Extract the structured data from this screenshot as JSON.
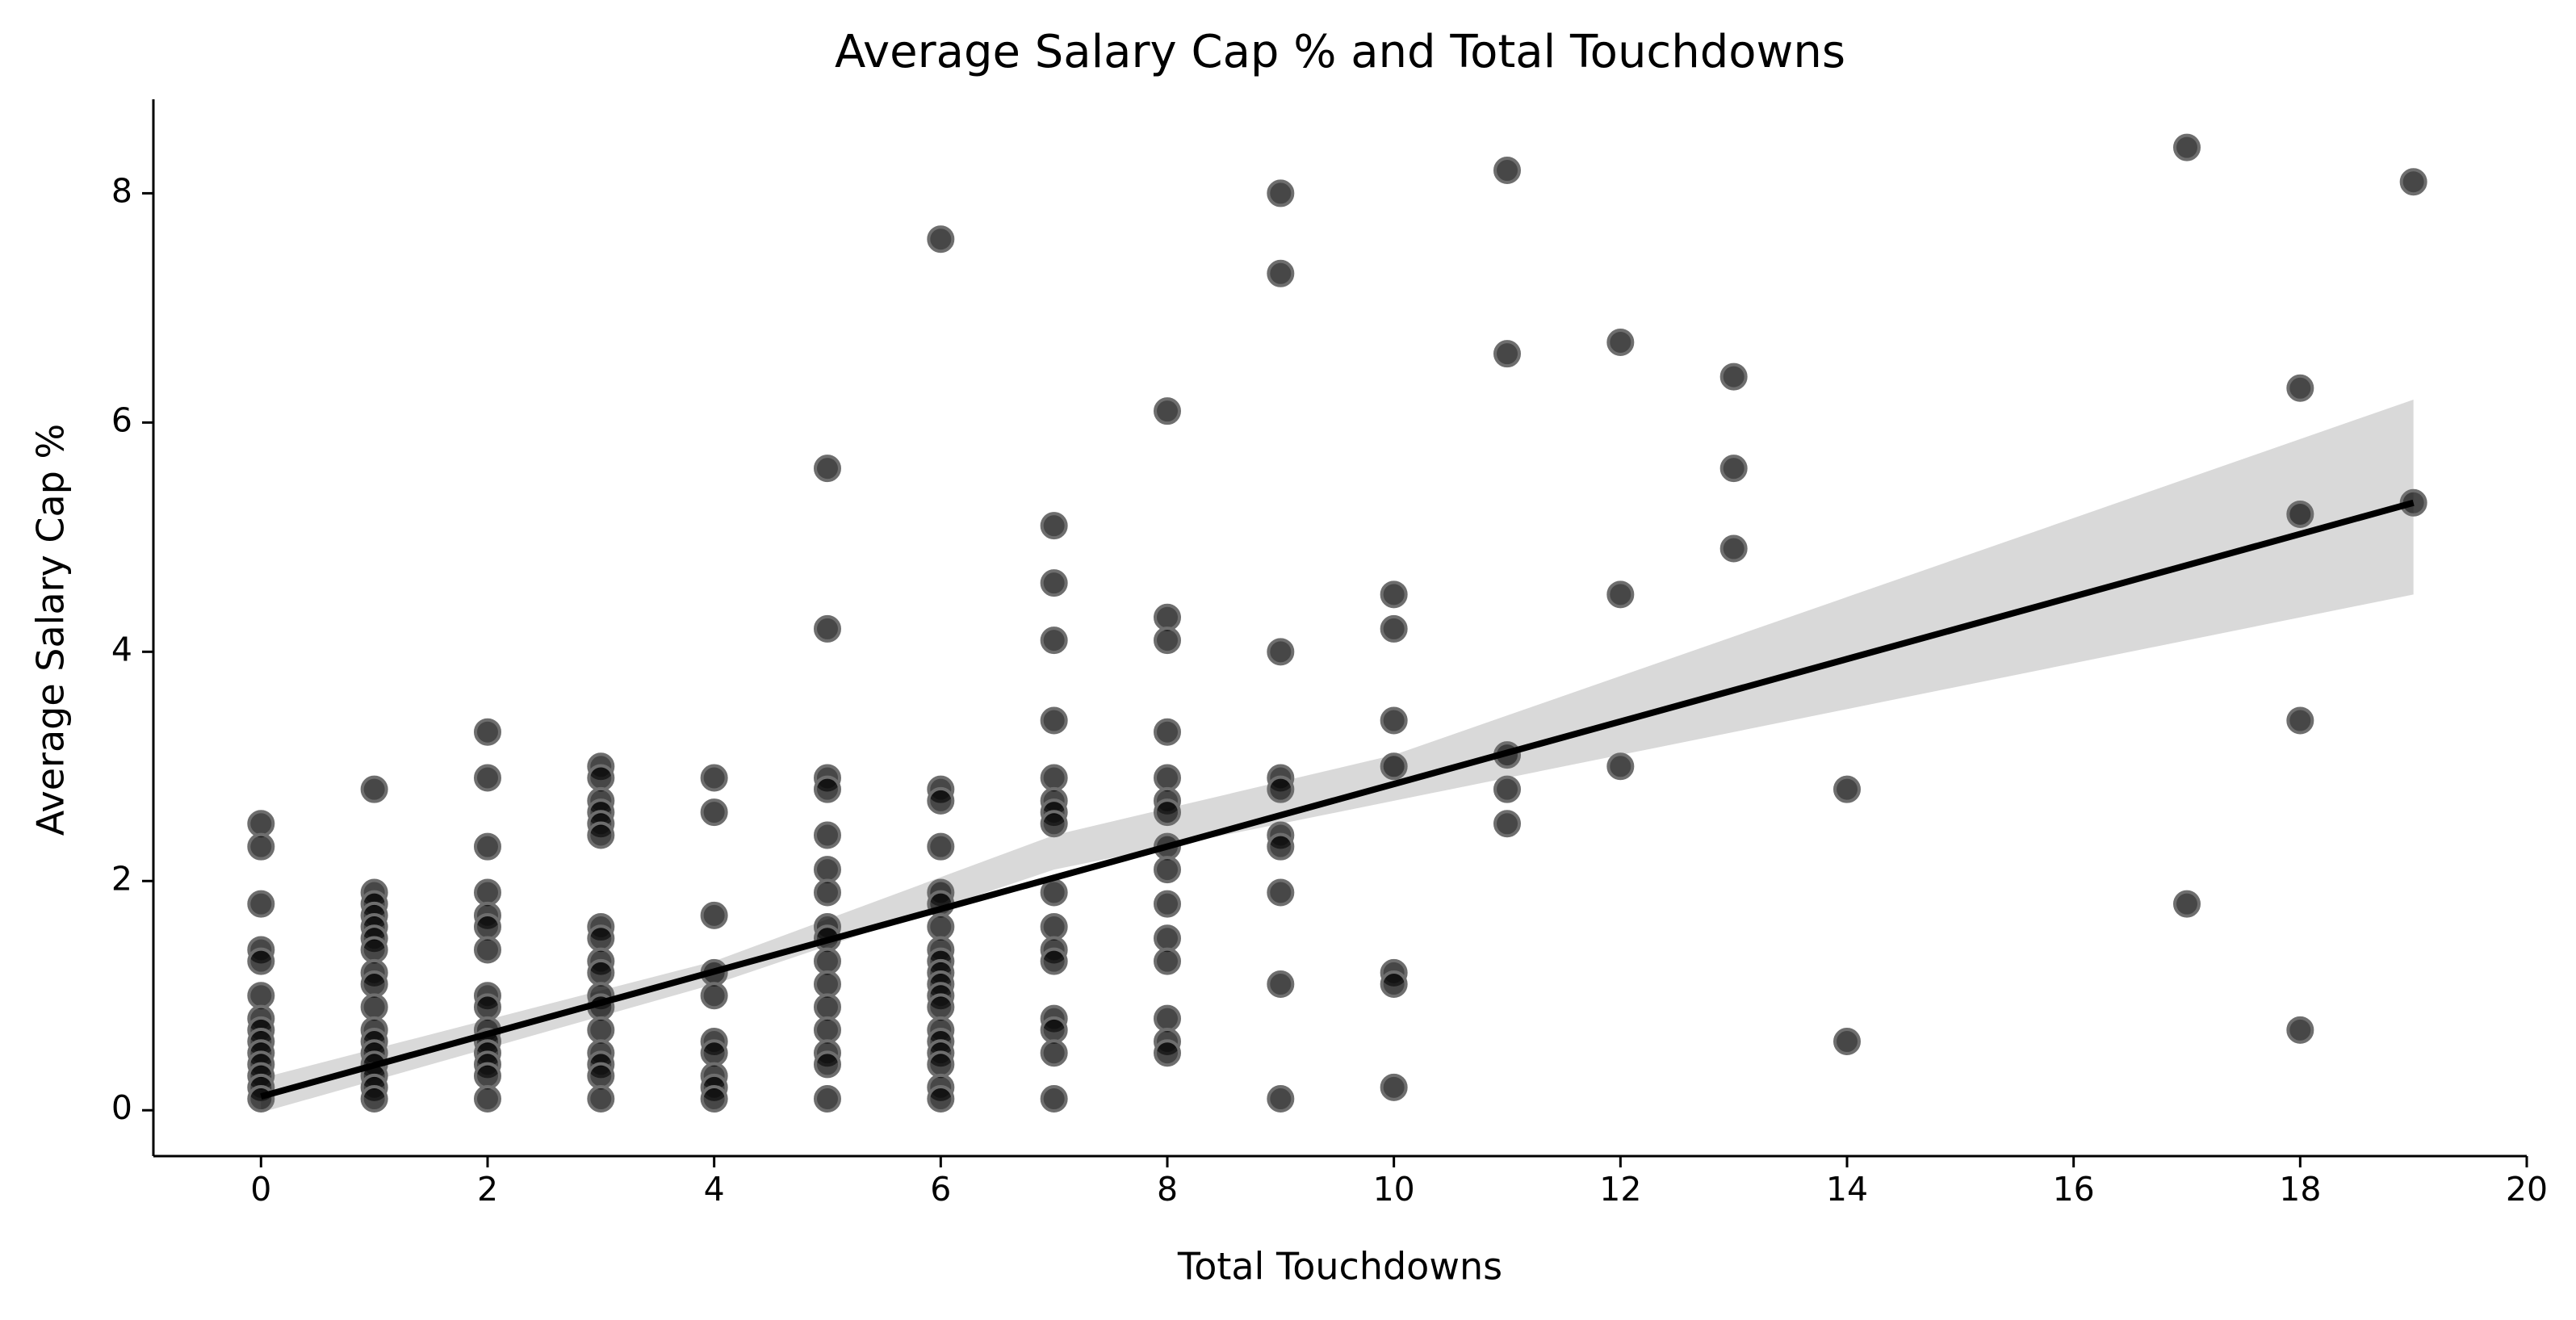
{
  "chart_data": {
    "type": "scatter",
    "title": "Average Salary Cap % and Total Touchdowns",
    "x_label": "Total Touchdowns",
    "y_label": "Average Salary Cap %",
    "xlim": [
      -0.95,
      20
    ],
    "ylim": [
      -0.4,
      8.82
    ],
    "xticks": [
      0,
      2,
      4,
      6,
      8,
      10,
      12,
      14,
      16,
      18,
      20
    ],
    "yticks": [
      0,
      2,
      4,
      6,
      8
    ],
    "color": "#000000",
    "x": [
      0,
      0,
      0,
      0,
      0,
      0,
      0,
      0,
      0,
      0,
      0,
      0,
      0,
      0,
      1,
      1,
      1,
      1,
      1,
      1,
      1,
      1,
      1,
      1,
      1,
      1,
      1,
      1,
      1,
      1,
      1,
      2,
      2,
      2,
      2,
      2,
      2,
      2,
      2,
      2,
      2,
      2,
      2,
      2,
      2,
      2,
      3,
      3,
      3,
      3,
      3,
      3,
      3,
      3,
      3,
      3,
      3,
      3,
      3,
      3,
      3,
      3,
      3,
      4,
      4,
      4,
      4,
      4,
      4,
      4,
      4,
      4,
      4,
      5,
      5,
      5,
      5,
      5,
      5,
      5,
      5,
      5,
      5,
      5,
      5,
      5,
      5,
      5,
      5,
      6,
      6,
      6,
      6,
      6,
      6,
      6,
      6,
      6,
      6,
      6,
      6,
      6,
      6,
      6,
      6,
      6,
      6,
      6,
      7,
      7,
      7,
      7,
      7,
      7,
      7,
      7,
      7,
      7,
      7,
      7,
      7,
      7,
      7,
      7,
      8,
      8,
      8,
      8,
      8,
      8,
      8,
      8,
      8,
      8,
      8,
      8,
      8,
      8,
      8,
      9,
      9,
      9,
      9,
      9,
      9,
      9,
      9,
      9,
      9,
      10,
      10,
      10,
      10,
      10,
      10,
      10,
      11,
      11,
      11,
      11,
      11,
      12,
      12,
      12,
      13,
      13,
      13,
      14,
      14,
      17,
      17,
      18,
      18,
      18,
      18,
      19,
      19
    ],
    "values": [
      2.5,
      2.3,
      1.8,
      1.4,
      1.3,
      1.0,
      0.8,
      0.7,
      0.6,
      0.5,
      0.4,
      0.3,
      0.2,
      0.1,
      2.8,
      1.9,
      1.8,
      1.7,
      1.6,
      1.5,
      1.4,
      1.2,
      1.1,
      0.9,
      0.7,
      0.6,
      0.5,
      0.4,
      0.3,
      0.2,
      0.1,
      3.3,
      2.9,
      2.3,
      1.9,
      1.7,
      1.6,
      1.4,
      1.0,
      0.9,
      0.7,
      0.6,
      0.5,
      0.4,
      0.3,
      0.1,
      3.0,
      2.9,
      2.7,
      2.6,
      2.5,
      2.4,
      1.6,
      1.5,
      1.3,
      1.2,
      1.0,
      0.9,
      0.7,
      0.5,
      0.4,
      0.3,
      0.1,
      2.9,
      2.6,
      1.7,
      1.2,
      1.0,
      0.6,
      0.5,
      0.3,
      0.2,
      0.1,
      5.6,
      4.2,
      2.9,
      2.8,
      2.4,
      2.1,
      1.9,
      1.6,
      1.5,
      1.3,
      1.1,
      0.9,
      0.7,
      0.5,
      0.4,
      0.1,
      7.6,
      2.8,
      2.7,
      2.3,
      1.9,
      1.8,
      1.6,
      1.4,
      1.3,
      1.2,
      1.1,
      1.0,
      0.9,
      0.7,
      0.6,
      0.5,
      0.4,
      0.2,
      0.1,
      5.1,
      4.6,
      4.1,
      3.4,
      2.9,
      2.7,
      2.6,
      2.5,
      1.9,
      1.6,
      1.4,
      1.3,
      0.8,
      0.7,
      0.5,
      0.1,
      6.1,
      4.3,
      4.1,
      3.3,
      2.9,
      2.7,
      2.6,
      2.3,
      2.1,
      1.8,
      1.5,
      1.3,
      0.8,
      0.6,
      0.5,
      8.0,
      7.3,
      4.0,
      2.9,
      2.8,
      2.4,
      2.3,
      1.9,
      1.1,
      0.1,
      4.5,
      4.2,
      3.4,
      3.0,
      1.2,
      1.1,
      0.2,
      8.2,
      6.6,
      3.1,
      2.8,
      2.5,
      6.7,
      4.5,
      3.0,
      6.4,
      5.6,
      4.9,
      2.8,
      0.6,
      8.4,
      1.8,
      6.3,
      5.2,
      3.4,
      0.7,
      8.1,
      5.3
    ],
    "regression": {
      "x": [
        0,
        19
      ],
      "values": [
        0.12,
        5.3
      ],
      "color": "#000000"
    },
    "confidence_band": {
      "x": [
        0,
        4,
        7,
        10,
        19
      ],
      "lower": [
        -0.02,
        1.1,
        2.1,
        2.7,
        4.5
      ],
      "upper": [
        0.28,
        1.3,
        2.4,
        3.1,
        6.2
      ],
      "color": "#d9d9d9"
    }
  }
}
